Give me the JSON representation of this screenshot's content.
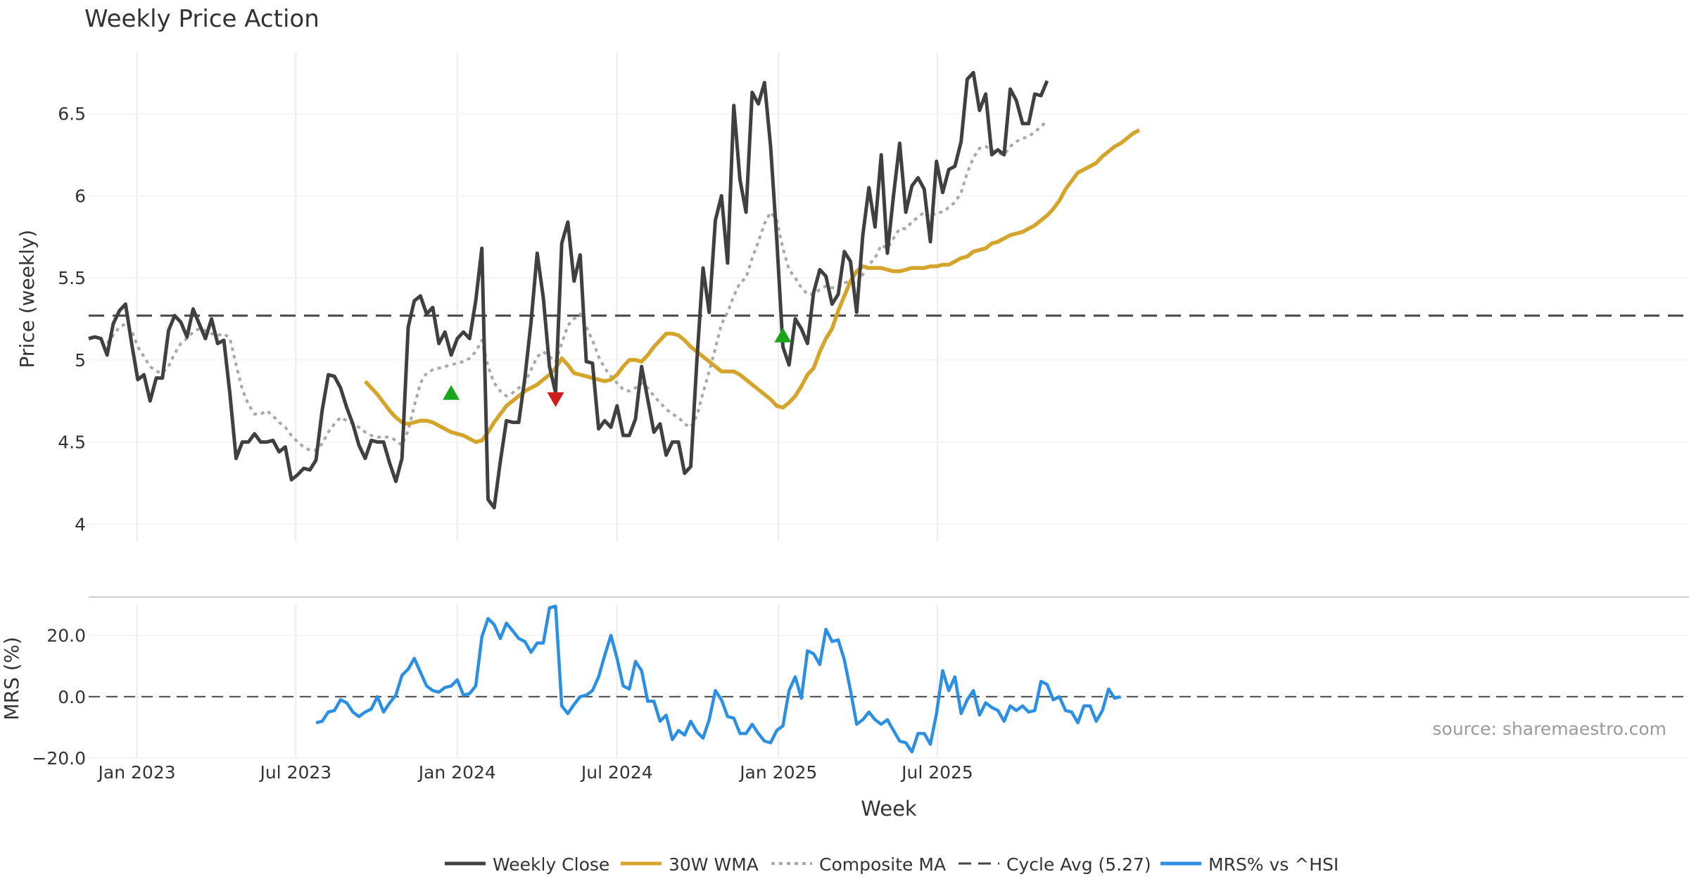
{
  "colors": {
    "close": "#404040",
    "wma": "#d4a52a",
    "composite": "#a8a8a8",
    "cycle": "#444444",
    "mrs": "#2b8fe3",
    "buy": "#1aa51a",
    "sell": "#d01c1c",
    "grid": "#ececec",
    "text": "#333333"
  },
  "chart_data": [
    {
      "type": "line",
      "title": "Weekly Price Action",
      "xlabel": "Week",
      "ylabel": "Price (weekly)",
      "ylim": [
        3.95,
        6.85
      ],
      "yticks": [
        4,
        4.5,
        5,
        5.5,
        6,
        6.5
      ],
      "ytick_labels": [
        "4",
        "4.5",
        "5",
        "5.5",
        "6",
        "6.5"
      ],
      "x_start": "2022-11-07",
      "x_step_days": 7,
      "cycle_avg": 5.27,
      "series": [
        {
          "name": "Weekly Close",
          "values": [
            5.13,
            5.14,
            5.13,
            5.03,
            5.22,
            5.3,
            5.34,
            5.1,
            4.88,
            4.91,
            4.75,
            4.89,
            4.89,
            5.18,
            5.27,
            5.23,
            5.14,
            5.31,
            5.22,
            5.13,
            5.25,
            5.1,
            5.12,
            4.79,
            4.4,
            4.5,
            4.5,
            4.55,
            4.5,
            4.5,
            4.51,
            4.44,
            4.47,
            4.27,
            4.3,
            4.34,
            4.33,
            4.39,
            4.69,
            4.91,
            4.9,
            4.83,
            4.71,
            4.61,
            4.48,
            4.4,
            4.51,
            4.5,
            4.5,
            4.37,
            4.26,
            4.4,
            5.2,
            5.36,
            5.39,
            5.28,
            5.32,
            5.1,
            5.17,
            5.03,
            5.13,
            5.17,
            5.13,
            5.36,
            5.68,
            4.15,
            4.1,
            4.38,
            4.63,
            4.62,
            4.62,
            4.89,
            5.23,
            5.65,
            5.38,
            4.96,
            4.8,
            5.71,
            5.84,
            5.48,
            5.64,
            4.99,
            4.98,
            4.58,
            4.63,
            4.59,
            4.72,
            4.54,
            4.54,
            4.64,
            4.96,
            4.76,
            4.56,
            4.61,
            4.42,
            4.5,
            4.5,
            4.31,
            4.35,
            5.0,
            5.56,
            5.29,
            5.85,
            6.0,
            5.59,
            6.55,
            6.1,
            5.9,
            6.63,
            6.56,
            6.69,
            6.3,
            5.73,
            5.08,
            4.97,
            5.25,
            5.19,
            5.1,
            5.41,
            5.55,
            5.51,
            5.34,
            5.4,
            5.66,
            5.6,
            5.29,
            5.76,
            6.05,
            5.81,
            6.25,
            5.65,
            6.0,
            6.32,
            5.9,
            6.06,
            6.11,
            6.04,
            5.72,
            6.21,
            6.02,
            6.16,
            6.18,
            6.33,
            6.71,
            6.75,
            6.52,
            6.62,
            6.25,
            6.28,
            6.25,
            6.65,
            6.58,
            6.44,
            6.44,
            6.62,
            6.61,
            6.7
          ]
        },
        {
          "name": "30W WMA",
          "values": [
            null,
            null,
            null,
            null,
            null,
            null,
            null,
            null,
            null,
            null,
            null,
            null,
            null,
            null,
            null,
            null,
            null,
            null,
            null,
            null,
            null,
            null,
            null,
            null,
            null,
            null,
            null,
            null,
            null,
            null,
            null,
            null,
            null,
            null,
            null,
            null,
            null,
            null,
            null,
            null,
            null,
            null,
            null,
            null,
            null,
            null,
            null,
            null,
            null,
            null,
            null,
            null,
            null,
            null,
            null,
            null,
            null,
            null,
            null,
            null,
            null,
            null,
            null,
            null,
            null,
            null,
            null,
            null,
            null,
            null,
            null,
            null,
            null,
            null,
            null,
            null,
            null,
            null,
            null,
            null,
            null,
            null,
            null,
            null,
            null,
            null,
            null,
            null,
            null,
            null,
            null,
            null,
            null,
            null,
            null,
            null,
            null,
            null,
            null,
            null,
            null,
            null,
            null,
            null,
            null,
            null,
            null,
            null,
            null,
            null,
            null,
            null,
            null,
            null,
            null,
            null,
            null,
            null,
            null,
            null,
            null,
            null,
            null,
            null,
            null,
            null,
            null,
            null,
            null,
            null,
            null,
            null,
            null,
            null,
            null,
            null,
            null,
            null,
            null,
            null,
            null,
            null,
            null,
            null,
            null,
            null,
            null,
            null,
            null,
            null,
            null,
            null,
            null,
            null,
            null
          ]
        },
        {
          "name": "Composite MA",
          "values": []
        }
      ],
      "legend": [
        "Weekly Close",
        "30W WMA",
        "Composite MA",
        "Cycle Avg (5.27)",
        "MRS% vs ^HSI"
      ],
      "legend_position": "bottom-center",
      "signals": [
        {
          "type": "buy",
          "week": 59,
          "value": 4.8
        },
        {
          "type": "sell",
          "week": 76,
          "value": 4.76
        },
        {
          "type": "buy",
          "week": 113,
          "value": 5.15
        }
      ]
    },
    {
      "type": "line",
      "ylabel": "MRS (%)",
      "ylim": [
        -20,
        30
      ],
      "yticks": [
        -20,
        0,
        20
      ],
      "ytick_labels": [
        "−20.0",
        "0.0",
        "20.0"
      ],
      "zero_line": 0,
      "x_tick_labels": [
        "Jan 2023",
        "Jul 2023",
        "Jan 2024",
        "Jul 2024",
        "Jan 2025",
        "Jul 2025"
      ],
      "x_tick_dates": [
        "2023-01-01",
        "2023-07-01",
        "2024-01-01",
        "2024-07-01",
        "2025-01-01",
        "2025-07-01"
      ],
      "series": [
        {
          "name": "MRS% vs ^HSI",
          "values": []
        }
      ]
    }
  ],
  "annotation": "source: sharemaestro.com"
}
